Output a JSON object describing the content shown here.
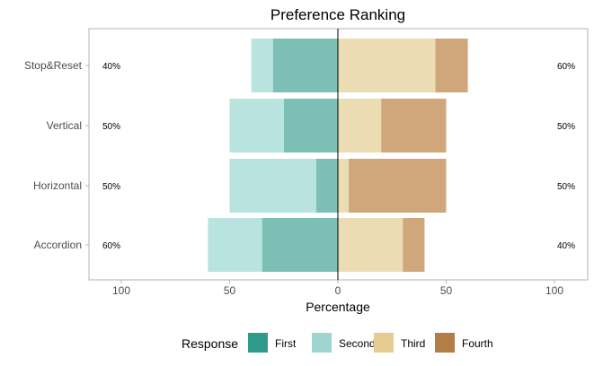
{
  "chart_data": {
    "type": "bar",
    "orientation": "horizontal-diverging",
    "title": "Preference Ranking",
    "xlabel": "Percentage",
    "ylabel": "",
    "xlim": [
      -100,
      100
    ],
    "x_ticks": [
      -100,
      -50,
      0,
      50,
      100
    ],
    "x_tick_labels": [
      "100",
      "50",
      "0",
      "50",
      "100"
    ],
    "grid": false,
    "legend_position": "bottom",
    "legend_title": "Response",
    "categories": [
      "Stop&Reset",
      "Vertical",
      "Horizontal",
      "Accordion"
    ],
    "series": [
      {
        "name": "First",
        "color": "#7bbfb5",
        "side": "negative",
        "values": [
          30,
          25,
          10,
          35
        ]
      },
      {
        "name": "Second",
        "color": "#b9e3df",
        "side": "negative",
        "values": [
          10,
          25,
          40,
          25
        ]
      },
      {
        "name": "Third",
        "color": "#ebdcb3",
        "side": "positive",
        "values": [
          45,
          20,
          5,
          30
        ]
      },
      {
        "name": "Fourth",
        "color": "#d0a77b",
        "side": "positive",
        "values": [
          15,
          30,
          45,
          10
        ]
      }
    ],
    "legend_colors": [
      "#2d9a8a",
      "#9ed6cf",
      "#e5cc93",
      "#b37d48"
    ],
    "left_labels": [
      "40%",
      "50%",
      "50%",
      "60%"
    ],
    "right_labels": [
      "60%",
      "50%",
      "50%",
      "40%"
    ]
  }
}
